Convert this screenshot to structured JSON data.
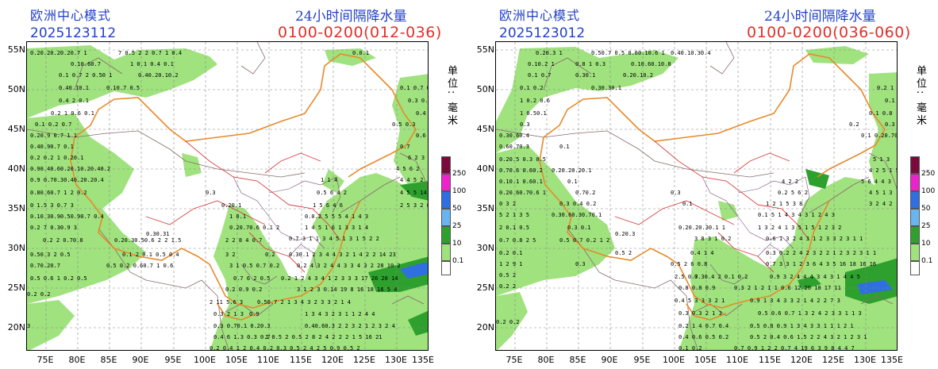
{
  "panels": [
    {
      "model_title": "欧洲中心模式",
      "init_time": "2025123112",
      "product_title": "24小时间隔降水量",
      "valid_period": "0100-0200(012-036)"
    },
    {
      "model_title": "欧洲中心模式",
      "init_time": "2025123012",
      "product_title": "24小时间隔降水量",
      "valid_period": "0100-0200(036-060)"
    }
  ],
  "map": {
    "lat_labels": [
      "55N",
      "50N",
      "45N",
      "40N",
      "35N",
      "30N",
      "25N",
      "20N"
    ],
    "lat_values": [
      55,
      50,
      45,
      40,
      35,
      30,
      25,
      20
    ],
    "lon_labels": [
      "75E",
      "80E",
      "85E",
      "90E",
      "95E",
      "100E",
      "105E",
      "110E",
      "115E",
      "120E",
      "125E",
      "130E",
      "135E"
    ],
    "lon_values": [
      75,
      80,
      85,
      90,
      95,
      100,
      105,
      110,
      115,
      120,
      125,
      130,
      135
    ],
    "extent": {
      "lon_min": 72,
      "lon_max": 135,
      "lat_min": 17,
      "lat_max": 56
    }
  },
  "legend": {
    "unit_label": "单位: 毫米",
    "levels": [
      "250",
      "100",
      "50",
      "25",
      "10",
      "0.1"
    ],
    "colors": [
      "#7a0a3c",
      "#ee22cc",
      "#2f6fe0",
      "#6ab4f0",
      "#2ea02e",
      "#9fe27e",
      "#ffffff"
    ]
  },
  "colors": {
    "light_green": "#9fe27e",
    "mid_green": "#2ea02e",
    "blue": "#2f6fe0",
    "light_blue": "#6ab4f0",
    "border_orange": "#e8892a",
    "province_red": "#d84040",
    "province_purple": "#7a4a7a",
    "grid": "#888888",
    "title_blue": "#2240c8",
    "period_red": "#e0302a"
  }
}
